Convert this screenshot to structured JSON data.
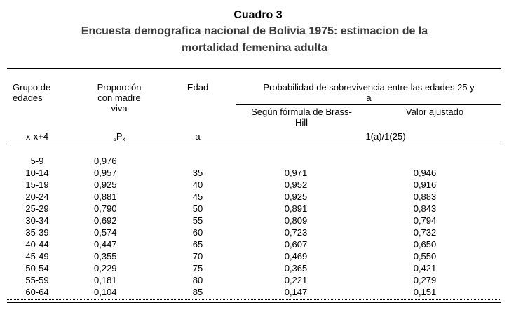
{
  "title": {
    "line1": "Cuadro 3",
    "line2": "Encuesta demografica nacional de Bolivia 1975: estimacion de la",
    "line3": "mortalidad femenina adulta"
  },
  "headers": {
    "group_line1": "Grupo de",
    "group_line2": "edades",
    "group_symbol": "x-x+4",
    "prop_line1": "Proporción",
    "prop_line2": "con madre",
    "prop_line3": "viva",
    "prop_symbol_sub": "5",
    "prop_symbol_main": "P",
    "prop_symbol_sub2": "x",
    "edad_line1": "Edad",
    "edad_symbol": "a",
    "prob_line1": "Probabilidad de sobrevivencia entre las edades 25 y",
    "prob_line2": "a",
    "brass_line1": "Según fórmula de Brass-",
    "brass_line2": "Hill",
    "ajust_line1": "Valor ajustado",
    "prob_symbol": "1(a)/1(25)"
  },
  "rows": [
    {
      "group": "5-9",
      "prop": "0,976",
      "edad": "",
      "brass": "",
      "ajust": ""
    },
    {
      "group": "10-14",
      "prop": "0,957",
      "edad": "35",
      "brass": "0,971",
      "ajust": "0,946"
    },
    {
      "group": "15-19",
      "prop": "0,925",
      "edad": "40",
      "brass": "0,952",
      "ajust": "0,916"
    },
    {
      "group": "20-24",
      "prop": "0,881",
      "edad": "45",
      "brass": "0,925",
      "ajust": "0,883"
    },
    {
      "group": "25-29",
      "prop": "0,790",
      "edad": "50",
      "brass": "0,891",
      "ajust": "0,843"
    },
    {
      "group": "30-34",
      "prop": "0,692",
      "edad": "55",
      "brass": "0,809",
      "ajust": "0,794"
    },
    {
      "group": "35-39",
      "prop": "0,574",
      "edad": "60",
      "brass": "0,723",
      "ajust": "0,732"
    },
    {
      "group": "40-44",
      "prop": "0,447",
      "edad": "65",
      "brass": "0,607",
      "ajust": "0,650"
    },
    {
      "group": "45-49",
      "prop": "0,355",
      "edad": "70",
      "brass": "0,469",
      "ajust": "0,550"
    },
    {
      "group": "50-54",
      "prop": "0,229",
      "edad": "75",
      "brass": "0,365",
      "ajust": "0,421"
    },
    {
      "group": "55-59",
      "prop": "0,181",
      "edad": "80",
      "brass": "0,221",
      "ajust": "0,279"
    },
    {
      "group": "60-64",
      "prop": "0,104",
      "edad": "85",
      "brass": "0,147",
      "ajust": "0,151"
    }
  ]
}
